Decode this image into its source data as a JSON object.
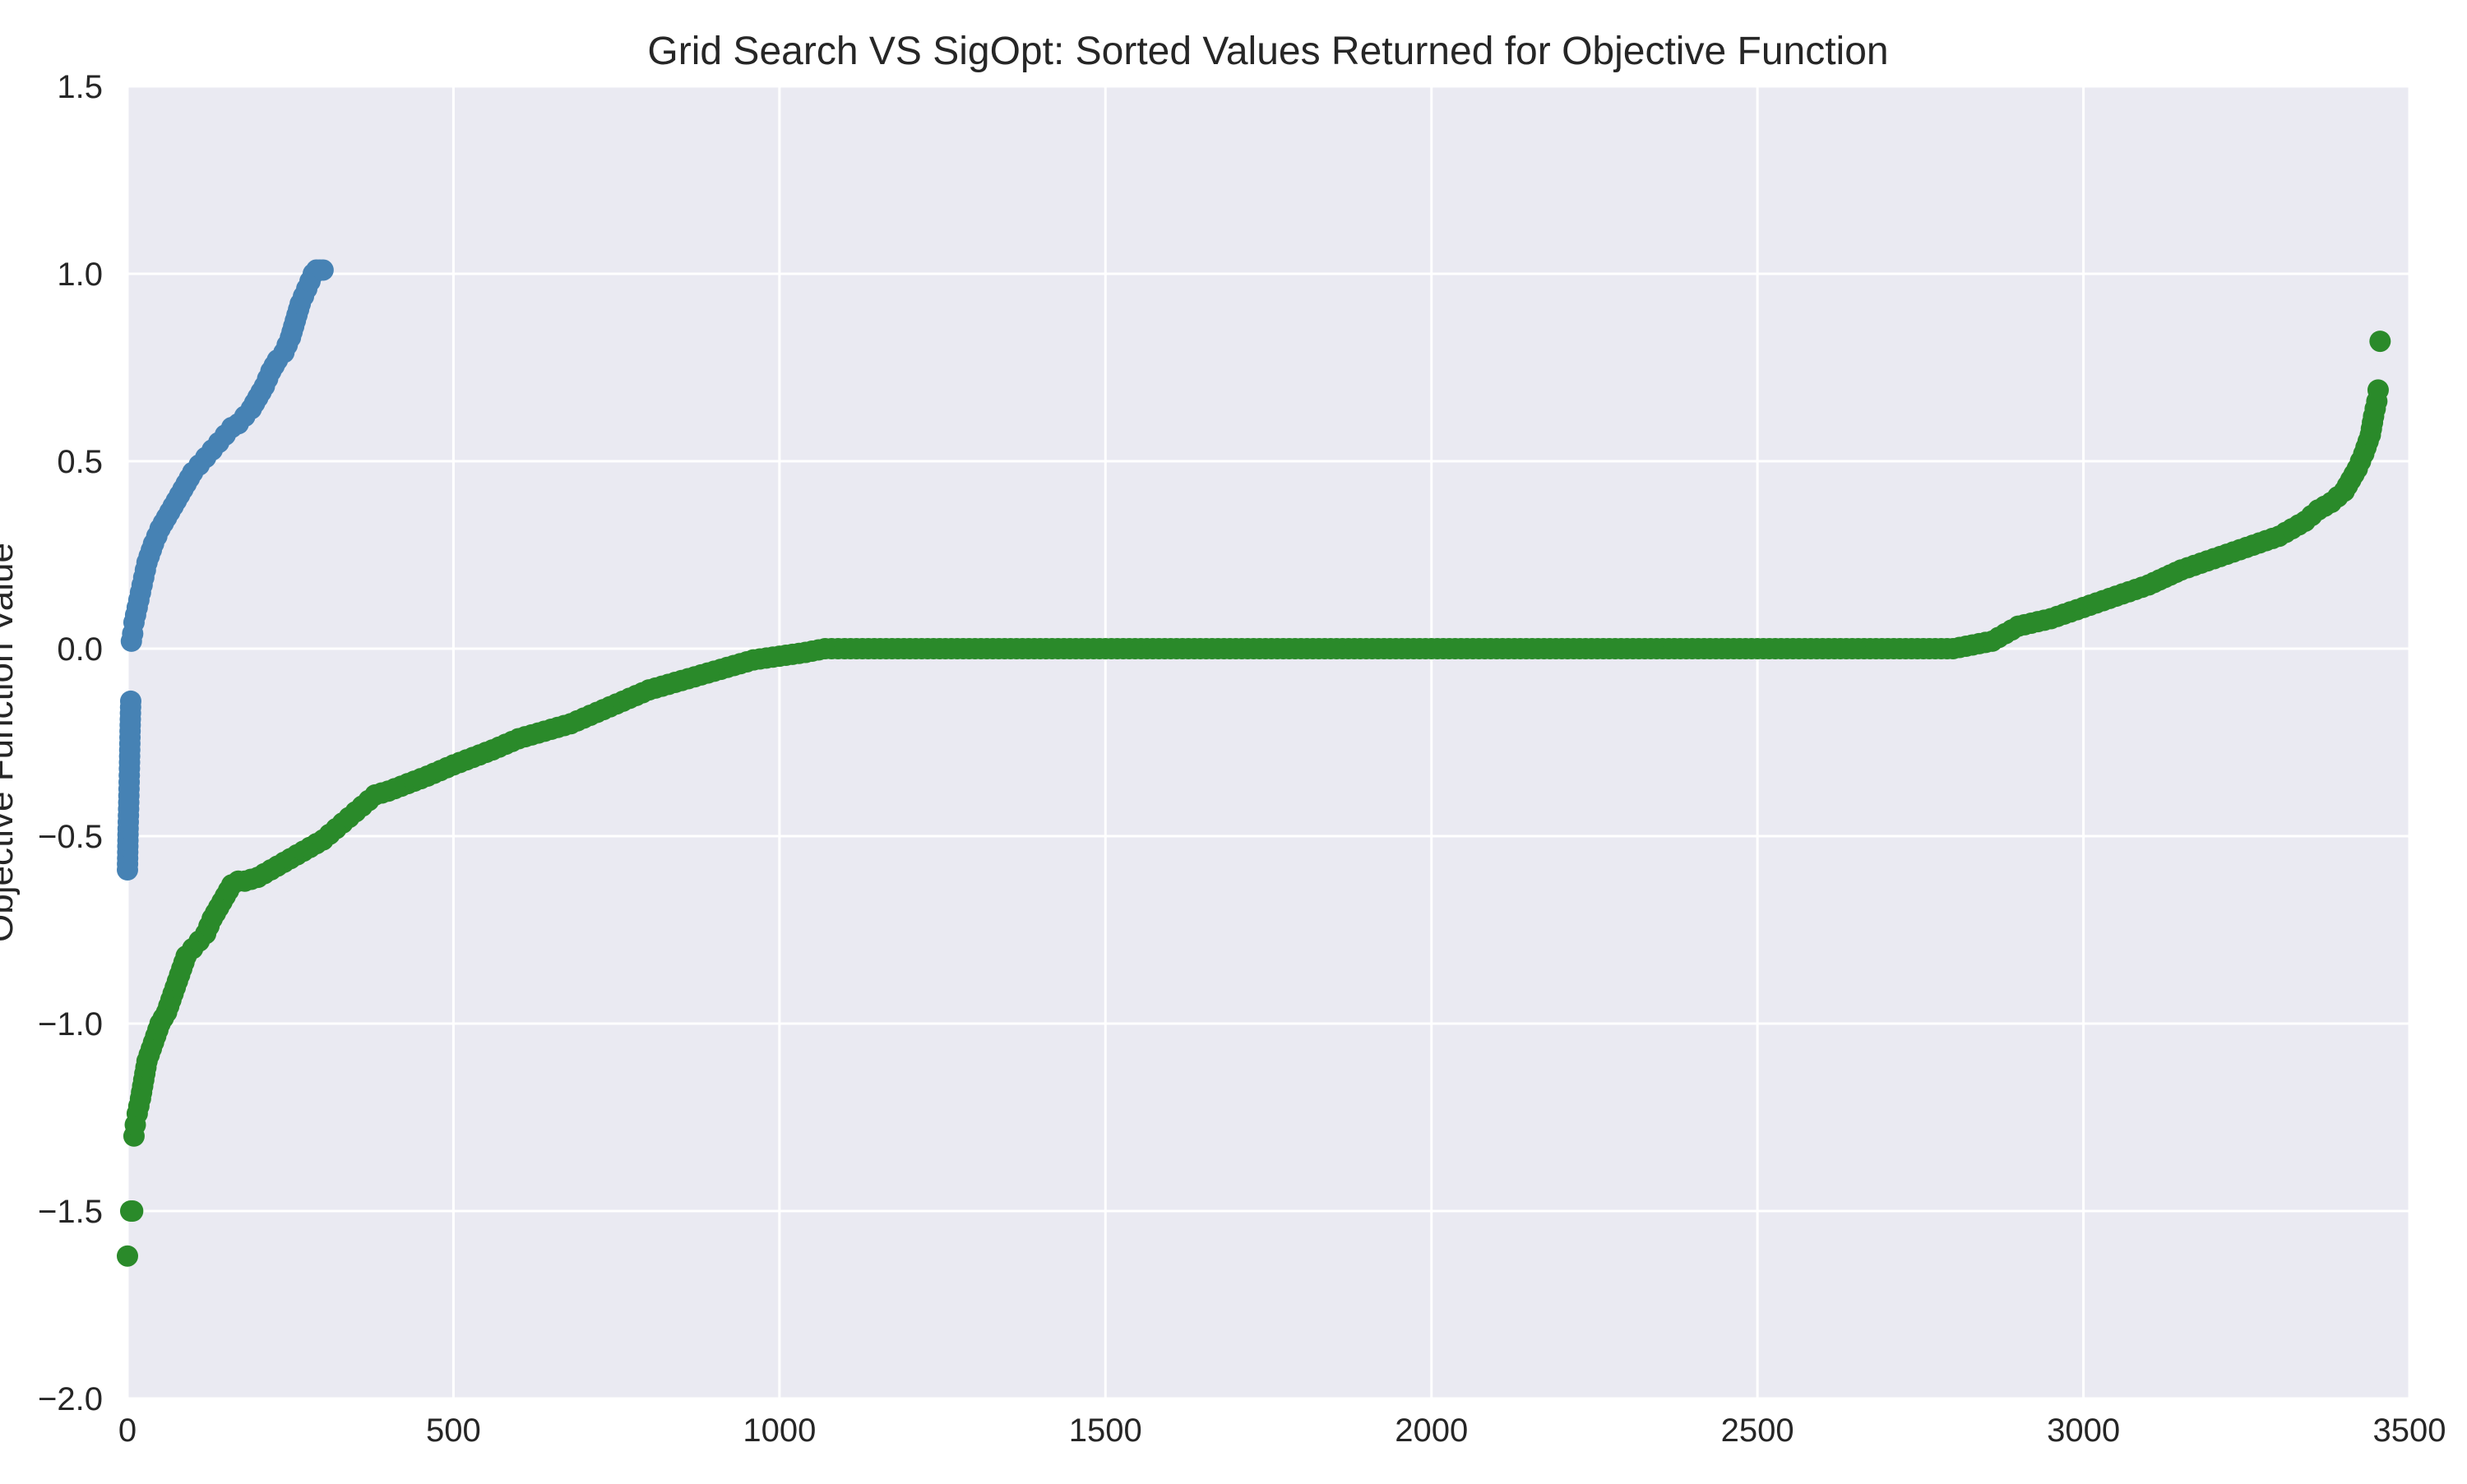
{
  "chart_data": {
    "type": "scatter",
    "title": "Grid Search VS SigOpt: Sorted Values Returned for Objective Function",
    "xlabel": "",
    "ylabel": "Objective Function Value",
    "xlim": [
      0,
      3500
    ],
    "ylim": [
      -2.0,
      1.5
    ],
    "grid": true,
    "legend": "none",
    "x_ticks": [
      "0",
      "500",
      "1000",
      "1500",
      "2000",
      "2500",
      "3000",
      "3500"
    ],
    "y_ticks": [
      "−2.0",
      "−1.5",
      "−1.0",
      "−0.5",
      "0.0",
      "0.5",
      "1.0",
      "1.5"
    ],
    "x_tick_values": [
      0,
      500,
      1000,
      1500,
      2000,
      2500,
      3000,
      3500
    ],
    "y_tick_values": [
      -2.0,
      -1.5,
      -1.0,
      -0.5,
      0.0,
      0.5,
      1.0,
      1.5
    ],
    "series": [
      {
        "color": "#4682b4",
        "x": [
          0,
          1,
          2,
          3,
          4,
          5,
          6,
          8,
          10,
          15,
          20,
          25,
          30,
          40,
          50,
          60,
          70,
          80,
          90,
          100,
          110,
          120,
          130,
          140,
          150,
          160,
          170,
          180,
          190,
          200,
          210,
          220,
          230,
          240,
          250,
          255,
          260,
          265,
          270,
          275,
          280,
          285,
          290,
          295,
          300
        ],
        "y": [
          -0.59,
          -0.48,
          -0.41,
          -0.32,
          -0.22,
          -0.14,
          0.02,
          0.04,
          0.07,
          0.11,
          0.15,
          0.19,
          0.23,
          0.28,
          0.32,
          0.35,
          0.38,
          0.41,
          0.44,
          0.47,
          0.49,
          0.51,
          0.53,
          0.55,
          0.57,
          0.59,
          0.6,
          0.62,
          0.64,
          0.67,
          0.7,
          0.74,
          0.77,
          0.79,
          0.83,
          0.86,
          0.89,
          0.92,
          0.94,
          0.96,
          0.98,
          1.0,
          1.01,
          1.01,
          1.01
        ]
      },
      {
        "color": "#2a8a2a",
        "x": [
          0,
          5,
          8,
          10,
          12,
          15,
          20,
          25,
          30,
          40,
          50,
          60,
          70,
          80,
          90,
          100,
          110,
          120,
          130,
          140,
          150,
          160,
          170,
          180,
          200,
          220,
          240,
          260,
          280,
          300,
          320,
          340,
          360,
          380,
          400,
          430,
          460,
          500,
          530,
          560,
          600,
          640,
          680,
          720,
          760,
          800,
          840,
          880,
          920,
          960,
          1000,
          1040,
          1070,
          1100,
          1200,
          1400,
          1600,
          1800,
          2000,
          2200,
          2400,
          2600,
          2800,
          2830,
          2860,
          2880,
          2900,
          2950,
          3000,
          3050,
          3100,
          3150,
          3200,
          3250,
          3300,
          3320,
          3340,
          3360,
          3380,
          3400,
          3410,
          3420,
          3430,
          3440,
          3445,
          3450,
          3452,
          3455
        ],
        "y": [
          -1.62,
          -1.5,
          -1.5,
          -1.3,
          -1.27,
          -1.24,
          -1.2,
          -1.15,
          -1.1,
          -1.05,
          -1.0,
          -0.97,
          -0.92,
          -0.87,
          -0.82,
          -0.8,
          -0.78,
          -0.76,
          -0.72,
          -0.69,
          -0.66,
          -0.63,
          -0.62,
          -0.62,
          -0.61,
          -0.59,
          -0.57,
          -0.55,
          -0.53,
          -0.51,
          -0.48,
          -0.45,
          -0.42,
          -0.39,
          -0.38,
          -0.36,
          -0.34,
          -0.31,
          -0.29,
          -0.27,
          -0.24,
          -0.22,
          -0.2,
          -0.17,
          -0.14,
          -0.11,
          -0.09,
          -0.07,
          -0.05,
          -0.03,
          -0.02,
          -0.01,
          0.0,
          0.0,
          0.0,
          0.0,
          0.0,
          0.0,
          0.0,
          0.0,
          0.0,
          0.0,
          0.0,
          0.01,
          0.02,
          0.04,
          0.06,
          0.08,
          0.11,
          0.14,
          0.17,
          0.21,
          0.24,
          0.27,
          0.3,
          0.32,
          0.34,
          0.37,
          0.39,
          0.42,
          0.45,
          0.48,
          0.52,
          0.57,
          0.62,
          0.66,
          0.69,
          0.82
        ]
      }
    ]
  }
}
